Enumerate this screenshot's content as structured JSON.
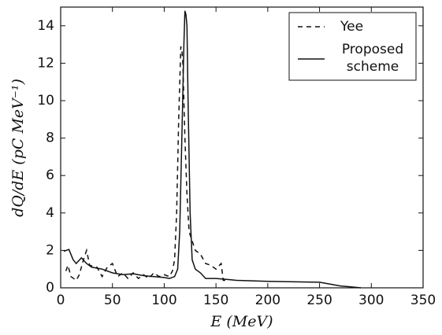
{
  "chart_data": {
    "type": "line",
    "x_label": "E (MeV)",
    "y_label": "dQ/dE (pC MeV⁻¹)",
    "xlim": [
      0,
      350
    ],
    "xticks": [
      0,
      50,
      100,
      150,
      200,
      250,
      300,
      350
    ],
    "ylim": [
      0,
      15
    ],
    "yticks": [
      0,
      2,
      4,
      6,
      8,
      10,
      12,
      14
    ],
    "legend": "upper right",
    "series": [
      {
        "name": "Yee",
        "color": "#111111",
        "dash": "dashed",
        "x": [
          5,
          7,
          10,
          15,
          18,
          22,
          25,
          28,
          35,
          40,
          45,
          50,
          55,
          60,
          65,
          70,
          75,
          80,
          85,
          90,
          95,
          100,
          105,
          108,
          110,
          112,
          114,
          116,
          117,
          118,
          120,
          122,
          124,
          127,
          130,
          135,
          140,
          145,
          150,
          155,
          157,
          160
        ],
        "values": [
          0.9,
          1.2,
          0.6,
          0.4,
          0.7,
          1.5,
          2.0,
          1.2,
          1.1,
          0.6,
          1.1,
          1.3,
          0.6,
          0.8,
          0.5,
          0.8,
          0.5,
          0.7,
          0.5,
          0.8,
          0.6,
          0.7,
          0.6,
          0.9,
          1.5,
          4,
          9,
          12.9,
          12.7,
          12.0,
          8,
          5,
          3,
          2.5,
          2.0,
          1.8,
          1.3,
          1.2,
          1.0,
          1.3,
          0.4,
          0.4
        ]
      },
      {
        "name": "Proposed scheme",
        "color": "#111111",
        "dash": "solid",
        "x": [
          3,
          8,
          12,
          15,
          20,
          25,
          30,
          40,
          50,
          60,
          70,
          80,
          90,
          100,
          105,
          110,
          113,
          115,
          117,
          119,
          120,
          121,
          122,
          123,
          125,
          127,
          130,
          135,
          140,
          150,
          160,
          170,
          200,
          250,
          260,
          270,
          280,
          290
        ],
        "values": [
          1.95,
          2.05,
          1.5,
          1.3,
          1.6,
          1.3,
          1.1,
          1.0,
          0.8,
          0.7,
          0.75,
          0.65,
          0.6,
          0.55,
          0.5,
          0.6,
          1.0,
          3,
          8,
          13,
          14.8,
          14.6,
          14.0,
          10,
          4,
          1.5,
          1.0,
          0.8,
          0.5,
          0.5,
          0.45,
          0.4,
          0.35,
          0.3,
          0.2,
          0.1,
          0.05,
          0.0
        ]
      }
    ]
  }
}
